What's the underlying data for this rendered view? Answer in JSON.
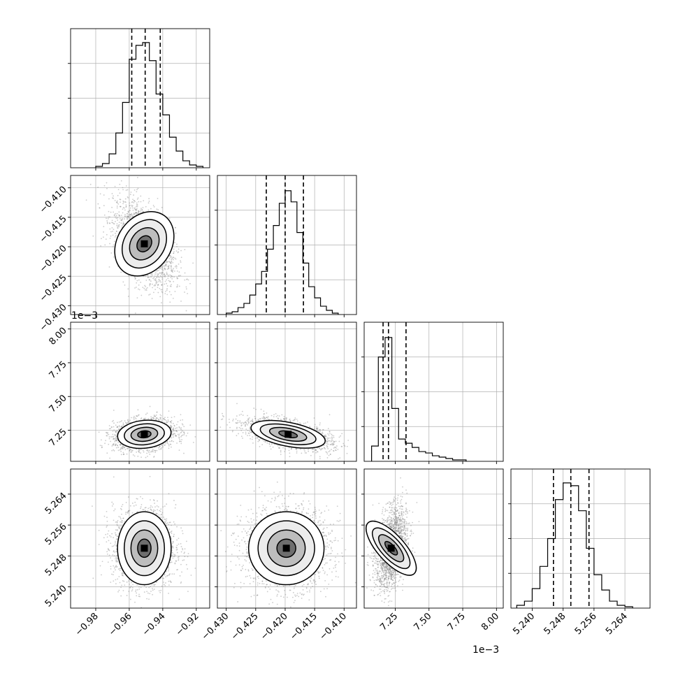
{
  "figure": {
    "type": "corner-plot",
    "grid": true,
    "offset_labels": {
      "row_2_y": "1e−3",
      "col_2_x": "1e−3"
    }
  },
  "chart_data": [
    {
      "id": "hist_0",
      "type": "bar",
      "row": 0,
      "col": 0,
      "xlim": [
        -0.995,
        -0.912
      ],
      "ylim": [
        0,
        1
      ],
      "bins": [
        -0.978,
        -0.974,
        -0.97,
        -0.966,
        -0.962,
        -0.958,
        -0.954,
        -0.95,
        -0.946,
        -0.942,
        -0.938,
        -0.934,
        -0.93,
        -0.926,
        -0.922,
        -0.918
      ],
      "values": [
        0.01,
        0.03,
        0.1,
        0.25,
        0.47,
        0.78,
        0.88,
        0.9,
        0.77,
        0.53,
        0.38,
        0.22,
        0.12,
        0.05,
        0.02,
        0.01
      ],
      "quantiles": [
        -0.9585,
        -0.9505,
        -0.9415
      ]
    },
    {
      "id": "scatter_1_0",
      "type": "heatmap",
      "row": 1,
      "col": 0,
      "xlim": [
        -0.995,
        -0.912
      ],
      "ylim": [
        -0.4315,
        -0.4079
      ],
      "center": [
        -0.951,
        -0.4195
      ],
      "spread": [
        0.008,
        0.0032
      ],
      "correlation": -0.5,
      "points": 2000,
      "contour_levels": [
        0.5,
        1.0,
        1.5,
        2.0
      ]
    },
    {
      "id": "hist_1",
      "type": "bar",
      "row": 1,
      "col": 1,
      "xlim": [
        -0.4315,
        -0.4079
      ],
      "ylim": [
        0,
        1
      ],
      "bins": [
        -0.4295,
        -0.4285,
        -0.4275,
        -0.4265,
        -0.4255,
        -0.4245,
        -0.4235,
        -0.4225,
        -0.4215,
        -0.4205,
        -0.4195,
        -0.4185,
        -0.4175,
        -0.4165,
        -0.4155,
        -0.4145,
        -0.4135,
        -0.4125,
        -0.4115
      ],
      "values": [
        0.01,
        0.02,
        0.05,
        0.08,
        0.14,
        0.22,
        0.31,
        0.47,
        0.64,
        0.8,
        0.89,
        0.81,
        0.59,
        0.37,
        0.2,
        0.12,
        0.06,
        0.03,
        0.01
      ],
      "quantiles": [
        -0.4232,
        -0.42,
        -0.4169
      ]
    },
    {
      "id": "scatter_2_0",
      "type": "heatmap",
      "row": 2,
      "col": 0,
      "xlim": [
        -0.995,
        -0.912
      ],
      "ylim": [
        7.02,
        8.05
      ],
      "center": [
        -0.951,
        7.22
      ],
      "spread": [
        0.008,
        0.05
      ],
      "correlation": 0.2,
      "points": 2000,
      "y_multiplier_label": "1e−3",
      "contour_levels": [
        0.5,
        1.0,
        1.5,
        2.0
      ]
    },
    {
      "id": "scatter_2_1",
      "type": "heatmap",
      "row": 2,
      "col": 1,
      "xlim": [
        -0.4315,
        -0.4079
      ],
      "ylim": [
        7.02,
        8.05
      ],
      "center": [
        -0.4195,
        7.22
      ],
      "spread": [
        0.0032,
        0.05
      ],
      "correlation": -0.55,
      "points": 2000,
      "contour_levels": [
        0.5,
        1.0,
        1.5,
        2.0
      ]
    },
    {
      "id": "hist_2",
      "type": "bar",
      "row": 2,
      "col": 2,
      "xlim": [
        7.02,
        8.05
      ],
      "ylim": [
        0,
        1
      ],
      "bins": [
        7.1,
        7.15,
        7.2,
        7.25,
        7.3,
        7.35,
        7.4,
        7.45,
        7.5,
        7.55,
        7.6,
        7.65,
        7.7,
        7.75
      ],
      "values": [
        0.11,
        0.75,
        0.89,
        0.38,
        0.16,
        0.13,
        0.1,
        0.07,
        0.06,
        0.04,
        0.03,
        0.02,
        0.01,
        0.01
      ],
      "quantiles": [
        7.16,
        7.2,
        7.33
      ]
    },
    {
      "id": "scatter_3_0",
      "type": "heatmap",
      "row": 3,
      "col": 0,
      "xlim": [
        -0.995,
        -0.912
      ],
      "ylim": [
        5.2345,
        5.2705
      ],
      "center": [
        -0.951,
        5.25
      ],
      "spread": [
        0.008,
        0.0045
      ],
      "correlation": 0.0,
      "points": 2000,
      "contour_levels": [
        0.5,
        1.0,
        1.5,
        2.0
      ]
    },
    {
      "id": "scatter_3_1",
      "type": "heatmap",
      "row": 3,
      "col": 1,
      "xlim": [
        -0.4315,
        -0.4079
      ],
      "ylim": [
        5.2345,
        5.2705
      ],
      "center": [
        -0.4198,
        5.25
      ],
      "spread": [
        0.0032,
        0.0045
      ],
      "correlation": 0.0,
      "points": 2000,
      "contour_levels": [
        0.5,
        1.0,
        1.5,
        2.0
      ]
    },
    {
      "id": "scatter_3_2",
      "type": "heatmap",
      "row": 3,
      "col": 2,
      "xlim": [
        7.02,
        8.05
      ],
      "ylim": [
        5.2345,
        5.2705
      ],
      "center": [
        7.22,
        5.25
      ],
      "spread": [
        0.05,
        0.0045
      ],
      "correlation": 0.35,
      "points": 2000,
      "contour_levels": [
        0.5,
        1.0,
        1.5,
        2.0
      ]
    },
    {
      "id": "hist_3",
      "type": "bar",
      "row": 3,
      "col": 3,
      "xlim": [
        5.2345,
        5.2705
      ],
      "ylim": [
        0,
        1
      ],
      "bins": [
        5.237,
        5.239,
        5.241,
        5.243,
        5.245,
        5.247,
        5.249,
        5.251,
        5.253,
        5.255,
        5.257,
        5.259,
        5.261,
        5.263,
        5.265
      ],
      "values": [
        0.02,
        0.05,
        0.14,
        0.3,
        0.5,
        0.78,
        0.9,
        0.88,
        0.7,
        0.43,
        0.24,
        0.13,
        0.05,
        0.02,
        0.01
      ],
      "quantiles": [
        5.2455,
        5.25,
        5.2547
      ]
    }
  ],
  "ticks": {
    "p0_x": [
      "−0.98",
      "−0.96",
      "−0.94",
      "−0.92"
    ],
    "p0_xv": [
      -0.98,
      -0.96,
      -0.94,
      -0.92
    ],
    "p1_x": [
      "−0.430",
      "−0.425",
      "−0.420",
      "−0.415",
      "−0.410"
    ],
    "p1_xv": [
      -0.43,
      -0.425,
      -0.42,
      -0.415,
      -0.41
    ],
    "p1_y": [
      "−0.410",
      "−0.415",
      "−0.420",
      "−0.425",
      "−0.430"
    ],
    "p1_yv": [
      -0.41,
      -0.415,
      -0.42,
      -0.425,
      -0.43
    ],
    "p2_x": [
      "7.25",
      "7.50",
      "7.75",
      "8.00"
    ],
    "p2_xv": [
      7.25,
      7.5,
      7.75,
      8.0
    ],
    "p2_y": [
      "8.00",
      "7.75",
      "7.50",
      "7.25"
    ],
    "p2_yv": [
      8.0,
      7.75,
      7.5,
      7.25
    ],
    "p3_x": [
      "5.240",
      "5.248",
      "5.256",
      "5.264"
    ],
    "p3_xv": [
      5.24,
      5.248,
      5.256,
      5.264
    ],
    "p3_y": [
      "5.264",
      "5.256",
      "5.248",
      "5.240"
    ],
    "p3_yv": [
      5.264,
      5.256,
      5.248,
      5.24
    ],
    "hist_y": [
      0.25,
      0.5,
      0.75
    ]
  },
  "style": {
    "line": "#000000",
    "grid": "#b0b0b0",
    "point": "#8c8c8c"
  }
}
